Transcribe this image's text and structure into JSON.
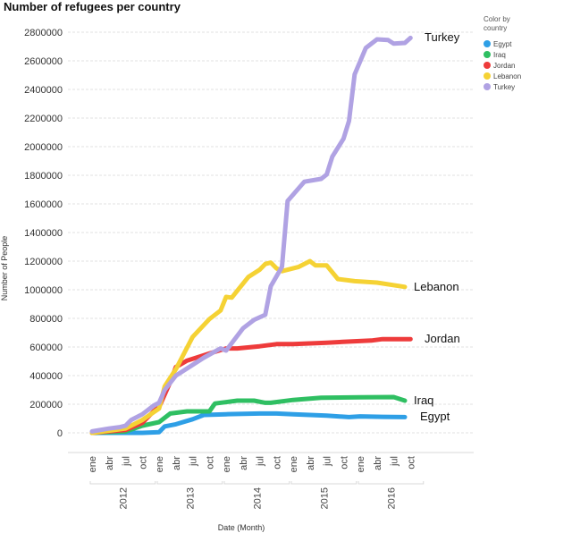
{
  "chart_data": {
    "type": "line",
    "title": "Number of refugees per country",
    "xlabel": "Date (Month)",
    "ylabel": "Number of People",
    "ylim": [
      -140000,
      2900000
    ],
    "yticks": [
      0,
      200000,
      400000,
      600000,
      800000,
      1000000,
      1200000,
      1400000,
      1600000,
      1800000,
      2000000,
      2200000,
      2400000,
      2600000,
      2800000
    ],
    "xlim": [
      "2012-01",
      "2016-10"
    ],
    "month_tick_labels": [
      "ene",
      "abr",
      "jul",
      "oct"
    ],
    "year_labels": [
      "2012",
      "2013",
      "2014",
      "2015",
      "2016"
    ],
    "grid": "horizontal",
    "legend": {
      "title": "Color by country",
      "placement": "right"
    },
    "series": [
      {
        "name": "Egypt",
        "color": "#2e9fe6",
        "points": [
          [
            "2012-01",
            0
          ],
          [
            "2012-10",
            0
          ],
          [
            "2013-01",
            5000
          ],
          [
            "2013-02",
            45000
          ],
          [
            "2013-04",
            60000
          ],
          [
            "2013-07",
            95000
          ],
          [
            "2013-09",
            125000
          ],
          [
            "2014-01",
            130000
          ],
          [
            "2014-07",
            135000
          ],
          [
            "2014-10",
            135000
          ],
          [
            "2015-01",
            130000
          ],
          [
            "2015-07",
            120000
          ],
          [
            "2015-11",
            110000
          ],
          [
            "2016-01",
            115000
          ],
          [
            "2016-05",
            112000
          ],
          [
            "2016-09",
            110000
          ]
        ]
      },
      {
        "name": "Iraq",
        "color": "#2fbf62",
        "points": [
          [
            "2012-01",
            0
          ],
          [
            "2012-07",
            10000
          ],
          [
            "2012-10",
            50000
          ],
          [
            "2013-01",
            75000
          ],
          [
            "2013-03",
            135000
          ],
          [
            "2013-06",
            150000
          ],
          [
            "2013-10",
            150000
          ],
          [
            "2013-11",
            205000
          ],
          [
            "2014-03",
            225000
          ],
          [
            "2014-06",
            225000
          ],
          [
            "2014-08",
            210000
          ],
          [
            "2014-09",
            210000
          ],
          [
            "2015-01",
            230000
          ],
          [
            "2015-06",
            245000
          ],
          [
            "2016-01",
            248000
          ],
          [
            "2016-07",
            250000
          ],
          [
            "2016-09",
            225000
          ]
        ]
      },
      {
        "name": "Jordan",
        "color": "#ee3b3b",
        "points": [
          [
            "2012-01",
            0
          ],
          [
            "2012-07",
            20000
          ],
          [
            "2012-10",
            70000
          ],
          [
            "2012-12",
            150000
          ],
          [
            "2013-01",
            180000
          ],
          [
            "2013-03",
            355000
          ],
          [
            "2013-04",
            460000
          ],
          [
            "2013-06",
            505000
          ],
          [
            "2013-10",
            555000
          ],
          [
            "2014-01",
            590000
          ],
          [
            "2014-03",
            590000
          ],
          [
            "2014-07",
            605000
          ],
          [
            "2014-10",
            620000
          ],
          [
            "2015-01",
            620000
          ],
          [
            "2015-07",
            630000
          ],
          [
            "2015-12",
            640000
          ],
          [
            "2016-03",
            645000
          ],
          [
            "2016-05",
            655000
          ],
          [
            "2016-10",
            655000
          ]
        ]
      },
      {
        "name": "Lebanon",
        "color": "#f5d234",
        "points": [
          [
            "2012-01",
            0
          ],
          [
            "2012-07",
            30000
          ],
          [
            "2012-10",
            90000
          ],
          [
            "2013-01",
            170000
          ],
          [
            "2013-02",
            325000
          ],
          [
            "2013-04",
            445000
          ],
          [
            "2013-07",
            670000
          ],
          [
            "2013-10",
            795000
          ],
          [
            "2013-12",
            855000
          ],
          [
            "2014-01",
            950000
          ],
          [
            "2014-02",
            945000
          ],
          [
            "2014-05",
            1090000
          ],
          [
            "2014-07",
            1140000
          ],
          [
            "2014-08",
            1180000
          ],
          [
            "2014-09",
            1190000
          ],
          [
            "2014-10",
            1150000
          ],
          [
            "2014-11",
            1130000
          ],
          [
            "2015-02",
            1160000
          ],
          [
            "2015-04",
            1200000
          ],
          [
            "2015-05",
            1170000
          ],
          [
            "2015-07",
            1170000
          ],
          [
            "2015-09",
            1075000
          ],
          [
            "2015-12",
            1060000
          ],
          [
            "2016-04",
            1050000
          ],
          [
            "2016-09",
            1020000
          ]
        ]
      },
      {
        "name": "Turkey",
        "color": "#b0a2e3",
        "points": [
          [
            "2012-01",
            10000
          ],
          [
            "2012-04",
            30000
          ],
          [
            "2012-06",
            40000
          ],
          [
            "2012-07",
            50000
          ],
          [
            "2012-08",
            90000
          ],
          [
            "2012-10",
            130000
          ],
          [
            "2012-12",
            190000
          ],
          [
            "2013-01",
            210000
          ],
          [
            "2013-02",
            300000
          ],
          [
            "2013-04",
            400000
          ],
          [
            "2013-06",
            450000
          ],
          [
            "2013-09",
            525000
          ],
          [
            "2013-12",
            590000
          ],
          [
            "2014-01",
            575000
          ],
          [
            "2014-04",
            730000
          ],
          [
            "2014-06",
            790000
          ],
          [
            "2014-08",
            825000
          ],
          [
            "2014-09",
            1025000
          ],
          [
            "2014-11",
            1160000
          ],
          [
            "2014-12",
            1620000
          ],
          [
            "2015-03",
            1755000
          ],
          [
            "2015-06",
            1775000
          ],
          [
            "2015-07",
            1805000
          ],
          [
            "2015-08",
            1930000
          ],
          [
            "2015-10",
            2055000
          ],
          [
            "2015-11",
            2180000
          ],
          [
            "2015-12",
            2505000
          ],
          [
            "2016-02",
            2690000
          ],
          [
            "2016-04",
            2750000
          ],
          [
            "2016-06",
            2745000
          ],
          [
            "2016-07",
            2720000
          ],
          [
            "2016-09",
            2725000
          ],
          [
            "2016-10",
            2760000
          ]
        ]
      }
    ]
  }
}
